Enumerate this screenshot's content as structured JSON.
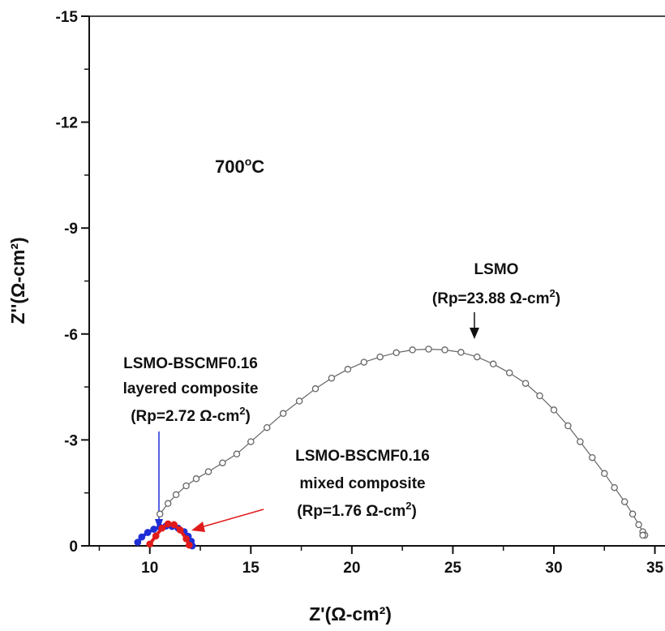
{
  "chart_data": {
    "type": "scatter",
    "xlabel": "Z'(Ω-cm²)",
    "ylabel": "Z''(Ω-cm²)",
    "xlim": [
      7,
      35.5
    ],
    "ylim": [
      0,
      -15
    ],
    "x_ticks": [
      10,
      15,
      20,
      25,
      30,
      35
    ],
    "y_ticks": [
      0,
      -3,
      -6,
      -9,
      -12,
      -15
    ],
    "x_tick_labels": [
      "10",
      "15",
      "20",
      "25",
      "30",
      "35"
    ],
    "y_tick_labels": [
      "0",
      "-3",
      "-6",
      "-9",
      "-12",
      "-15"
    ],
    "grid": false,
    "colors": {
      "lsmo": "#666666",
      "layered": "#1f2fd6",
      "mixed": "#e01b1b"
    },
    "annotations": {
      "temperature": {
        "base": "700",
        "sup": "o",
        "unit": "C"
      },
      "lsmo": {
        "line1": "LSMO",
        "line2_pre": "(Rp=23.88 Ω-cm",
        "line2_sup": "2",
        "line2_post": ")"
      },
      "layered": {
        "line1": "LSMO-BSCMF0.16",
        "line2": "layered composite",
        "line3_pre": "(Rp=2.72 Ω-cm",
        "line3_sup": "2",
        "line3_post": ")"
      },
      "mixed": {
        "line1": "LSMO-BSCMF0.16",
        "line2": "mixed composite",
        "line3_pre": "(Rp=1.76 Ω-cm",
        "line3_sup": "2",
        "line3_post": ")"
      }
    },
    "series": [
      {
        "x": [
          10.5,
          10.9,
          11.3,
          11.8,
          12.3,
          12.9,
          13.6,
          14.3,
          15.0,
          15.8,
          16.6,
          17.4,
          18.2,
          19.0,
          19.8,
          20.6,
          21.4,
          22.2,
          23.0,
          23.8,
          24.6,
          25.4,
          26.2,
          27.0,
          27.8,
          28.6,
          29.3,
          30.0,
          30.7,
          31.3,
          31.9,
          32.5,
          33.0,
          33.5,
          33.9,
          34.2,
          34.4,
          34.5,
          34.4
        ],
        "y": [
          -0.9,
          -1.2,
          -1.45,
          -1.7,
          -1.9,
          -2.1,
          -2.35,
          -2.6,
          -2.95,
          -3.35,
          -3.75,
          -4.1,
          -4.45,
          -4.75,
          -5.0,
          -5.2,
          -5.35,
          -5.47,
          -5.55,
          -5.57,
          -5.55,
          -5.48,
          -5.35,
          -5.15,
          -4.9,
          -4.6,
          -4.25,
          -3.85,
          -3.4,
          -2.95,
          -2.5,
          -2.05,
          -1.65,
          -1.25,
          -0.9,
          -0.6,
          -0.4,
          -0.3,
          -0.3
        ]
      },
      {
        "x": [
          9.4,
          9.6,
          9.9,
          10.2,
          10.5,
          10.8,
          11.1,
          11.4,
          11.7,
          11.9,
          12.05,
          12.1
        ],
        "y": [
          -0.1,
          -0.25,
          -0.38,
          -0.47,
          -0.53,
          -0.56,
          -0.55,
          -0.5,
          -0.4,
          -0.27,
          -0.13,
          0
        ]
      },
      {
        "x": [
          10.0,
          10.3,
          10.6,
          10.9,
          11.2,
          11.5,
          11.8,
          11.95
        ],
        "y": [
          -0.05,
          -0.28,
          -0.5,
          -0.62,
          -0.6,
          -0.45,
          -0.2,
          -0.02
        ]
      }
    ]
  }
}
